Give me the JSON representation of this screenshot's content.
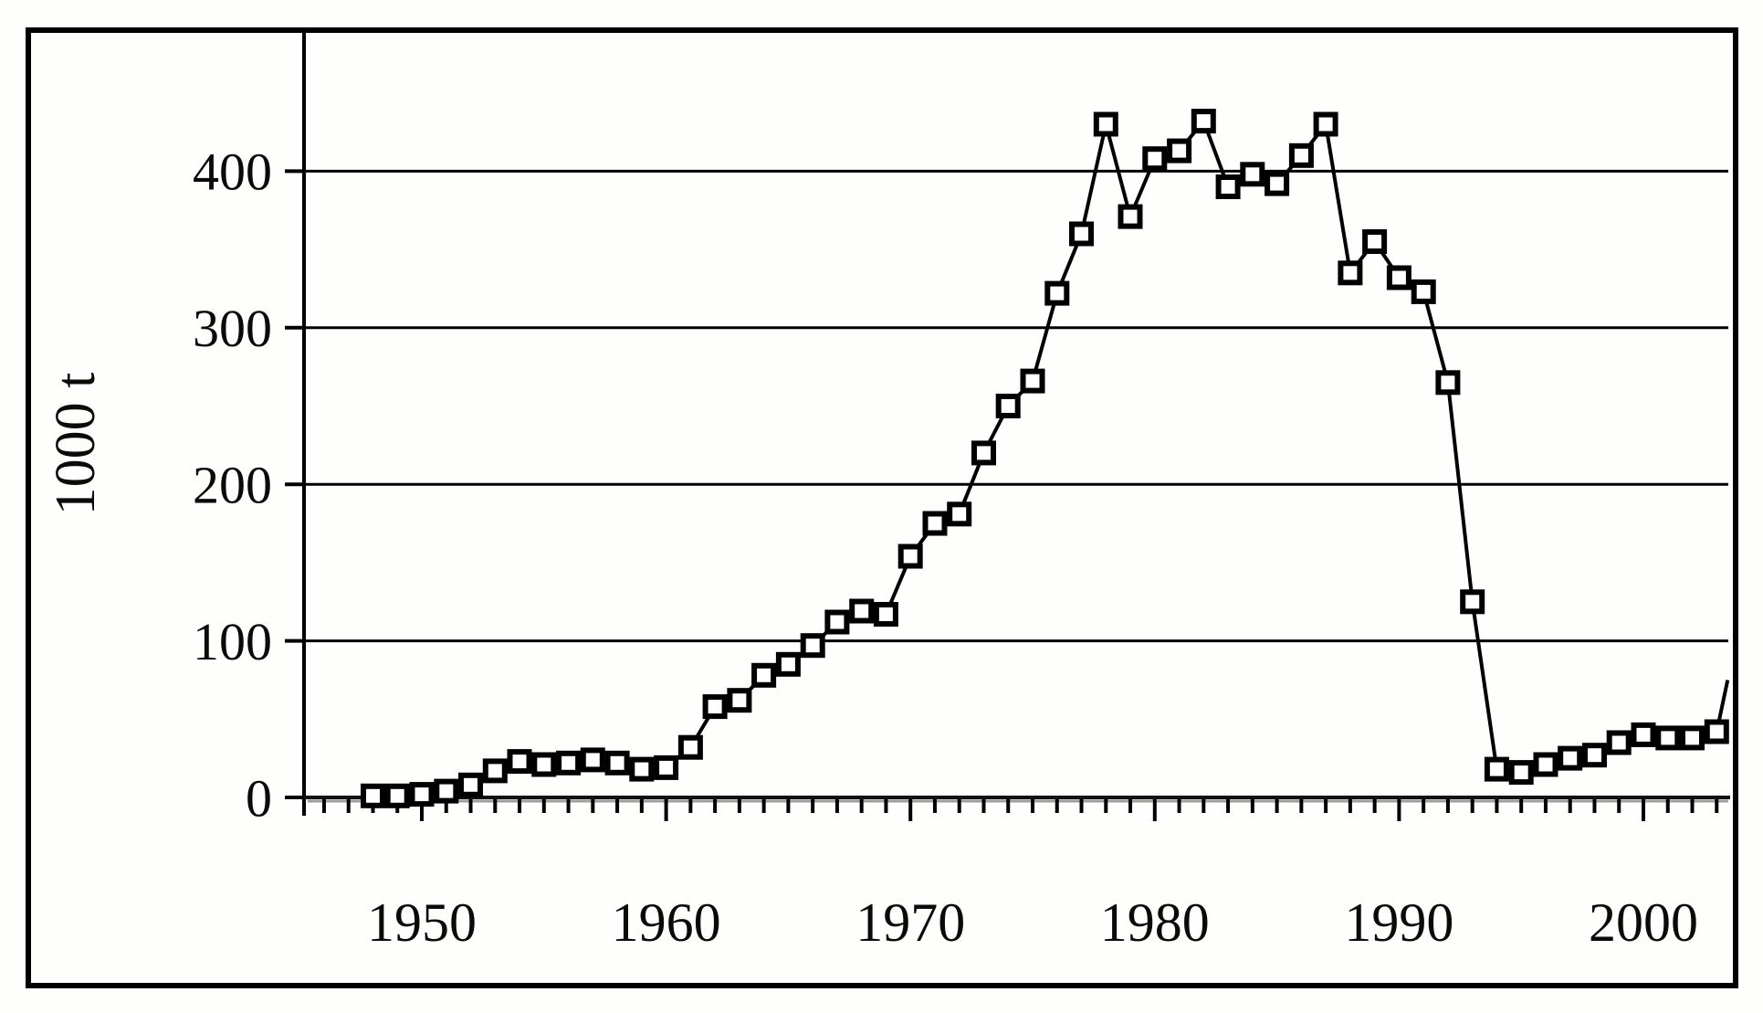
{
  "figure": {
    "border_color": "#000000",
    "background_color": "#ffffff"
  },
  "chart_data": {
    "type": "line",
    "ylabel": "1000 t",
    "xlabel": "",
    "legend": "none",
    "grid": "horizontal",
    "marker": "open-square",
    "line_color": "#000000",
    "marker_fill": "#ffffff",
    "ylim": [
      0,
      489
    ],
    "xlim_years": [
      1945.2,
      2003.4
    ],
    "y_tick_values": [
      0,
      100,
      200,
      300,
      400
    ],
    "y_tick_labels": [
      "0",
      "100",
      "200",
      "300",
      "400"
    ],
    "x_tick_labels": [
      "1950",
      "1960",
      "1970",
      "1980",
      "1990",
      "2000"
    ],
    "x_tick_label_years": [
      1950,
      1960,
      1970,
      1980,
      1990,
      2000
    ],
    "minor_tick_year_start": 1946,
    "minor_tick_year_end": 2003,
    "series": [
      {
        "name": "annual-catch-1000t",
        "years": [
          1948,
          1949,
          1950,
          1951,
          1952,
          1953,
          1954,
          1955,
          1956,
          1957,
          1958,
          1959,
          1960,
          1961,
          1962,
          1963,
          1964,
          1965,
          1966,
          1967,
          1968,
          1969,
          1970,
          1971,
          1972,
          1973,
          1974,
          1975,
          1976,
          1977,
          1978,
          1979,
          1980,
          1981,
          1982,
          1983,
          1984,
          1985,
          1986,
          1987,
          1988,
          1989,
          1990,
          1991,
          1992,
          1993,
          1994,
          1995,
          1996,
          1997,
          1998,
          1999,
          2000,
          2001,
          2002,
          2003
        ],
        "values": [
          1,
          1,
          2,
          4,
          8,
          17,
          23,
          21,
          22,
          24,
          22,
          18,
          19,
          32,
          58,
          62,
          78,
          85,
          97,
          112,
          119,
          117,
          154,
          175,
          181,
          220,
          250,
          266,
          322,
          360,
          430,
          371,
          408,
          413,
          432,
          390,
          398,
          392,
          410,
          430,
          335,
          355,
          332,
          323,
          265,
          125,
          18,
          16,
          21,
          25,
          27,
          35,
          40,
          38,
          38,
          42
        ]
      }
    ],
    "clipped_segment_end": {
      "year": 2003.45,
      "value": 75
    }
  }
}
